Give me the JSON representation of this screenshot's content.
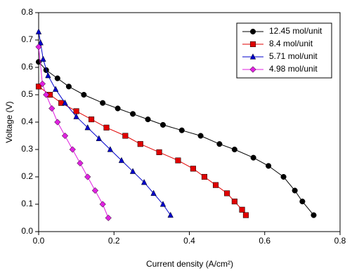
{
  "chart_data": {
    "type": "line",
    "xlabel": "Current density (A/cm²)",
    "ylabel": "Voltage (V)",
    "xlim": [
      0,
      0.8
    ],
    "ylim": [
      0,
      0.8
    ],
    "xticks": [
      {
        "value": 0,
        "label": "0.0"
      },
      {
        "value": 0.2,
        "label": "0.2"
      },
      {
        "value": 0.4,
        "label": "0.4"
      },
      {
        "value": 0.6,
        "label": "0.6"
      },
      {
        "value": 0.8,
        "label": "0.8"
      }
    ],
    "yticks": [
      {
        "value": 0,
        "label": "0.0"
      },
      {
        "value": 0.1,
        "label": "0.1"
      },
      {
        "value": 0.2,
        "label": "0.2"
      },
      {
        "value": 0.3,
        "label": "0.3"
      },
      {
        "value": 0.4,
        "label": "0.4"
      },
      {
        "value": 0.5,
        "label": "0.5"
      },
      {
        "value": 0.6,
        "label": "0.6"
      },
      {
        "value": 0.7,
        "label": "0.7"
      },
      {
        "value": 0.8,
        "label": "0.8"
      }
    ],
    "legend": "top right",
    "series": [
      {
        "name": "12.45 mol/unit",
        "color": "#000000",
        "marker": "circle",
        "x": [
          0,
          0.02,
          0.05,
          0.08,
          0.12,
          0.17,
          0.21,
          0.25,
          0.29,
          0.33,
          0.38,
          0.43,
          0.48,
          0.52,
          0.57,
          0.61,
          0.65,
          0.68,
          0.7,
          0.73
        ],
        "values": [
          0.62,
          0.59,
          0.56,
          0.53,
          0.5,
          0.47,
          0.45,
          0.43,
          0.41,
          0.39,
          0.37,
          0.35,
          0.32,
          0.3,
          0.27,
          0.24,
          0.2,
          0.15,
          0.11,
          0.06
        ]
      },
      {
        "name": "8.4 mol/unit",
        "color": "#e00000",
        "marker": "square",
        "x": [
          0,
          0.03,
          0.06,
          0.1,
          0.14,
          0.18,
          0.23,
          0.27,
          0.32,
          0.37,
          0.41,
          0.44,
          0.47,
          0.5,
          0.52,
          0.54,
          0.55
        ],
        "values": [
          0.53,
          0.5,
          0.47,
          0.44,
          0.41,
          0.38,
          0.35,
          0.32,
          0.29,
          0.26,
          0.23,
          0.2,
          0.17,
          0.14,
          0.11,
          0.08,
          0.06
        ]
      },
      {
        "name": "5.71 mol/unit",
        "color": "#0000cc",
        "marker": "triangle",
        "x": [
          0,
          0.005,
          0.012,
          0.025,
          0.045,
          0.07,
          0.1,
          0.13,
          0.16,
          0.19,
          0.22,
          0.25,
          0.28,
          0.305,
          0.33,
          0.35
        ],
        "values": [
          0.73,
          0.69,
          0.63,
          0.57,
          0.52,
          0.47,
          0.42,
          0.38,
          0.34,
          0.3,
          0.26,
          0.22,
          0.18,
          0.14,
          0.1,
          0.06
        ]
      },
      {
        "name": "4.98 mol/unit",
        "color": "#e020e0",
        "marker": "diamond",
        "x": [
          0,
          0.01,
          0.02,
          0.035,
          0.05,
          0.07,
          0.09,
          0.11,
          0.13,
          0.15,
          0.17,
          0.185
        ],
        "values": [
          0.675,
          0.54,
          0.5,
          0.45,
          0.4,
          0.35,
          0.3,
          0.25,
          0.2,
          0.15,
          0.1,
          0.05
        ]
      }
    ]
  }
}
